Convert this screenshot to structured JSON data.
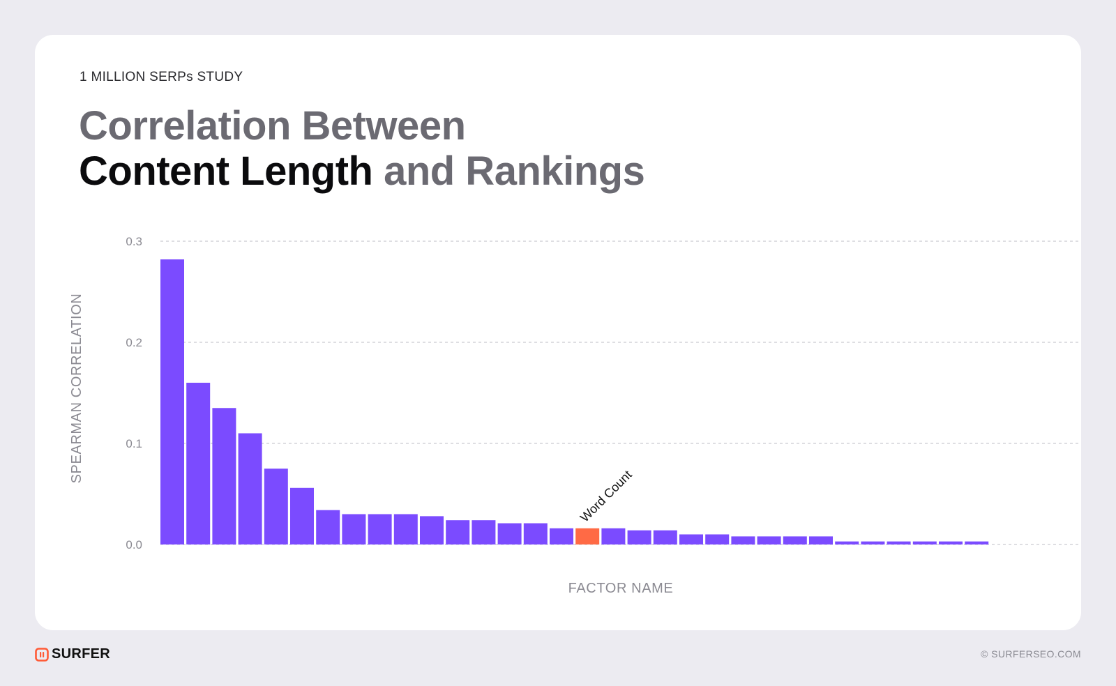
{
  "header": {
    "eyebrow": "1 MILLION SERPs STUDY",
    "title_line1": "Correlation Between",
    "title_line2_dark": "Content Length",
    "title_line2_light": " and Rankings"
  },
  "footer": {
    "brand": "SURFER",
    "copyright": "© SURFERSEO.COM"
  },
  "colors": {
    "bar": "#7b4bff",
    "highlight": "#ff6a45",
    "title_light": "#6b6a72",
    "title_dark": "#0b0b0d",
    "axis_text": "#8b8a92",
    "grid": "#bdbcc4",
    "background": "#ecebf1",
    "card": "#ffffff"
  },
  "chart_data": {
    "type": "bar",
    "xlabel": "FACTOR NAME",
    "ylabel": "SPEARMAN CORRELATION",
    "ylim": [
      0,
      0.3
    ],
    "yticks": [
      "0.0",
      "0.1",
      "0.2",
      "0.3"
    ],
    "grid": "horizontal-dashed",
    "values": [
      0.282,
      0.16,
      0.135,
      0.11,
      0.075,
      0.056,
      0.034,
      0.03,
      0.03,
      0.03,
      0.028,
      0.024,
      0.024,
      0.021,
      0.021,
      0.016,
      0.016,
      0.016,
      0.014,
      0.014,
      0.01,
      0.01,
      0.008,
      0.008,
      0.008,
      0.008,
      0.003,
      0.003,
      0.003,
      0.003,
      0.003,
      0.003
    ],
    "highlight_index": 16,
    "highlight_label": "Word Count"
  }
}
